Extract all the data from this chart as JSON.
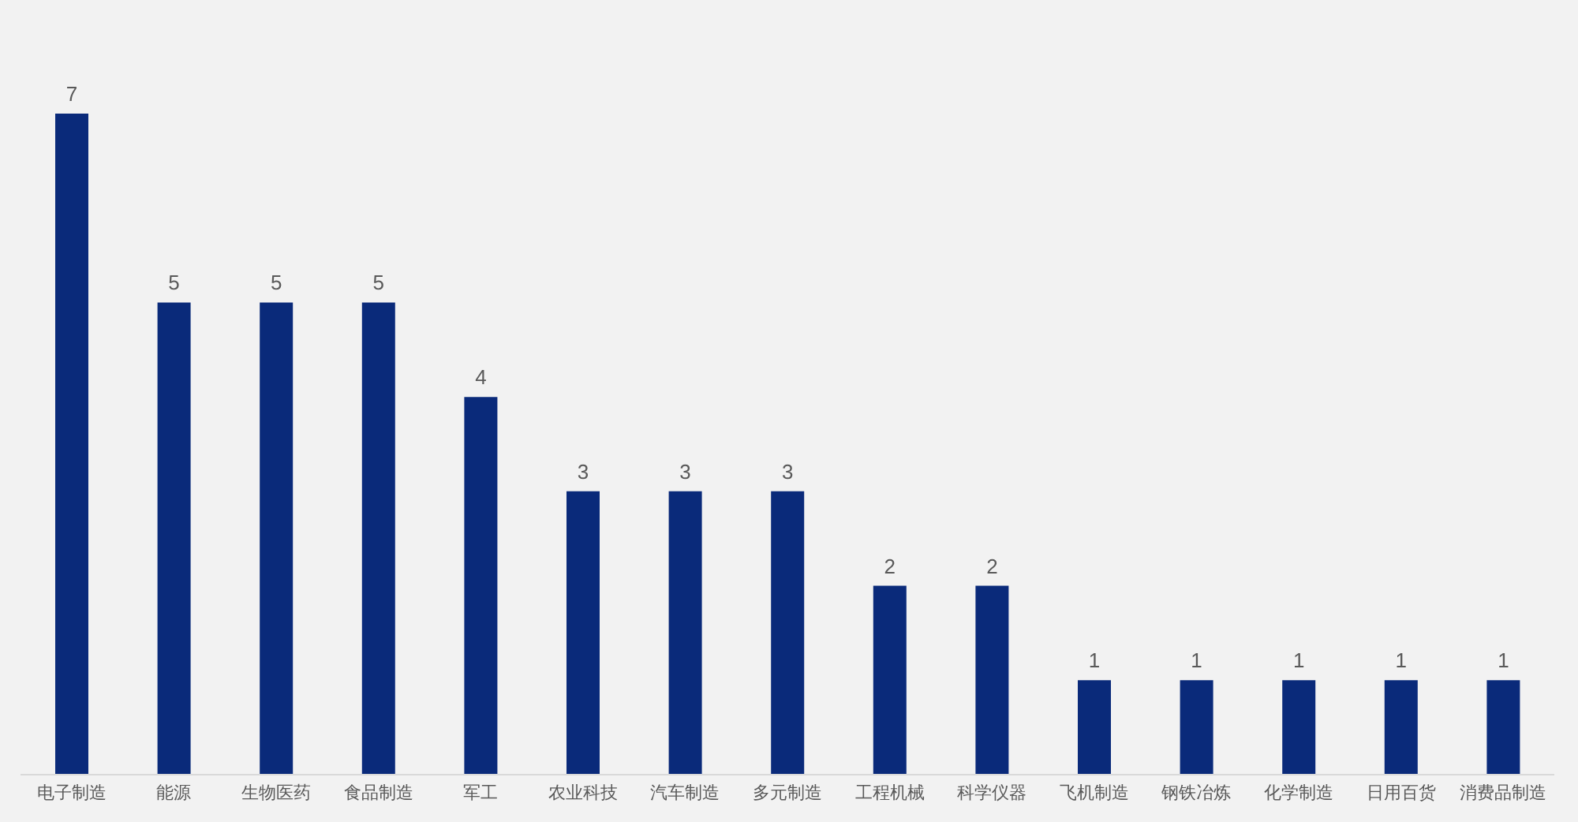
{
  "chart_data": {
    "type": "bar",
    "categories": [
      "电子制造",
      "能源",
      "生物医药",
      "食品制造",
      "军工",
      "农业科技",
      "汽车制造",
      "多元制造",
      "工程机械",
      "科学仪器",
      "飞机制造",
      "钢铁冶炼",
      "化学制造",
      "日用百货",
      "消费品制造"
    ],
    "values": [
      7,
      5,
      5,
      5,
      4,
      3,
      3,
      3,
      2,
      2,
      1,
      1,
      1,
      1,
      1
    ],
    "color": "#0a2a7a",
    "data_labels": true
  }
}
